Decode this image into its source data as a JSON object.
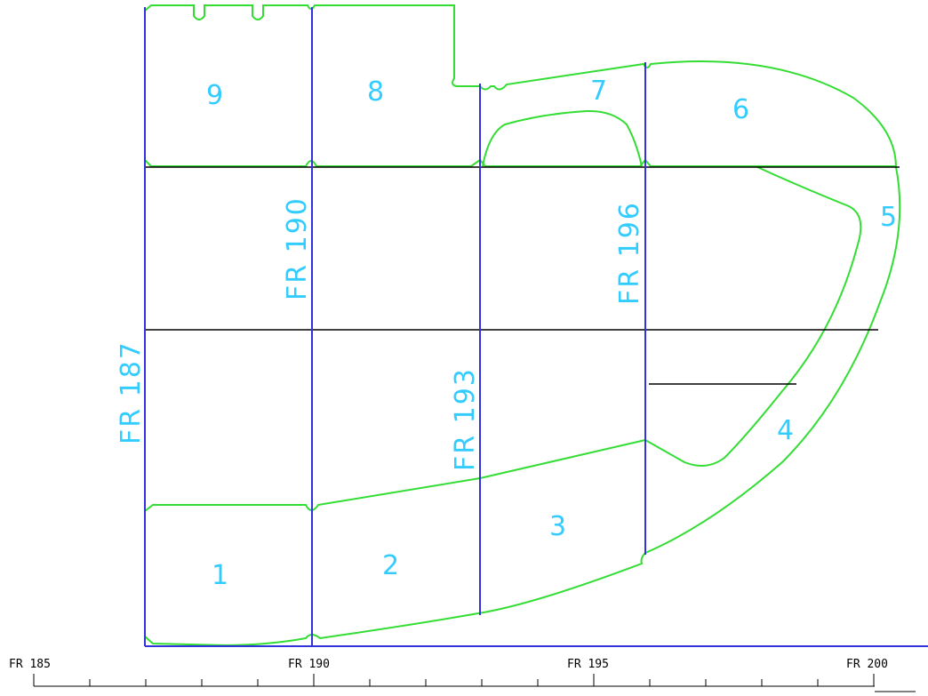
{
  "diagram": {
    "panel_labels": [
      "1",
      "2",
      "3",
      "4",
      "5",
      "6",
      "7",
      "8",
      "9"
    ],
    "frame_labels": [
      "FR 187",
      "FR 190",
      "FR 193",
      "FR 196"
    ],
    "scale": {
      "labels": [
        "FR 185",
        "FR 190",
        "FR 195",
        "FR 200"
      ]
    },
    "colors": {
      "panel_outline": "#33dd33",
      "frame_line": "#3333dd",
      "label": "#33ccff",
      "deck_line": "#000000"
    }
  }
}
